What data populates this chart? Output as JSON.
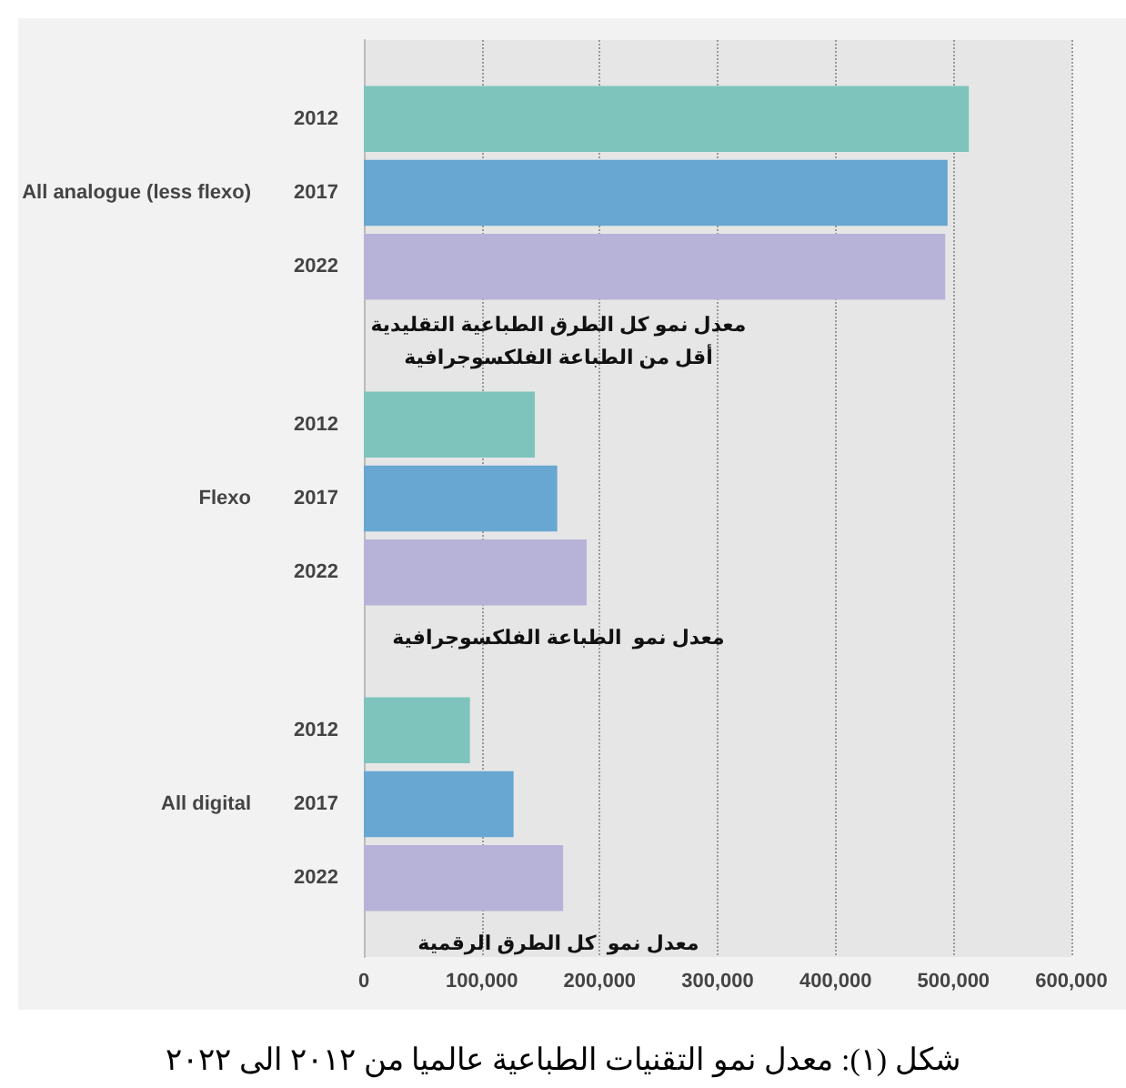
{
  "chart_data": {
    "type": "bar",
    "orientation": "horizontal",
    "title": "شكل (١): معدل نمو التقنيات الطباعية عالميا من ٢٠١٢ الى ٢٠٢٢",
    "categories": [
      "All analogue (less flexo)",
      "Flexo",
      "All digital"
    ],
    "series": [
      {
        "name": "2012",
        "color": "#7fc4bc",
        "values": [
          513000,
          145000,
          90000
        ]
      },
      {
        "name": "2017",
        "color": "#67a7d1",
        "values": [
          495000,
          164000,
          127000
        ]
      },
      {
        "name": "2022",
        "color": "#b7b3d8",
        "values": [
          493000,
          189000,
          169000
        ]
      }
    ],
    "xlim": [
      0,
      600000
    ],
    "xticks": [
      0,
      {
        "value": 100000,
        "label": "100,000"
      },
      {
        "value": 200000,
        "label": "200,000"
      },
      {
        "value": 300000,
        "label": "300,000"
      },
      {
        "value": 400000,
        "label": "400,000"
      },
      {
        "value": 500000,
        "label": "500,000"
      },
      {
        "value": 600000,
        "label": "600,000"
      }
    ],
    "annotations": [
      "معدل نمو كل الطرق الطباعية التقليدية\nأقل من الطباعة الفلكسوجرافية",
      "معدل نمو  الطباعة الفلكسوجرافية",
      "معدل نمو  كل الطرق الرقمية"
    ],
    "grid": "x",
    "legend": false
  }
}
